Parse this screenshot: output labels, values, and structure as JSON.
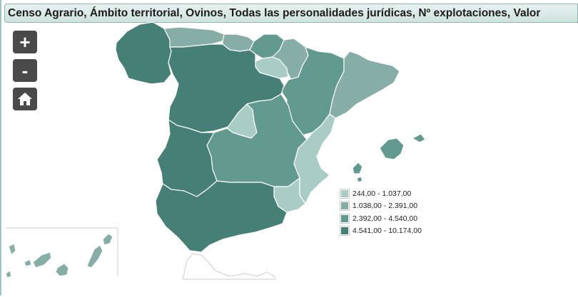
{
  "title": "Censo Agrario, Ámbito territorial, Ovinos, Todas las personalidades jurídicas, Nº explotaciones, Valor",
  "controls": {
    "zoom_in": "+",
    "zoom_out": "-",
    "home_icon": "home-icon"
  },
  "legend": [
    {
      "label": "244,00 - 1.037,00",
      "color": "#a9ccc5"
    },
    {
      "label": "1.038,00 - 2.391,00",
      "color": "#86ada6"
    },
    {
      "label": "2.392,00 - 4.540,00",
      "color": "#639a8f"
    },
    {
      "label": "4.541,00 - 10.174,00",
      "color": "#467f75"
    }
  ],
  "regions": [
    {
      "name": "Galicia",
      "class": 4
    },
    {
      "name": "Asturias",
      "class": 2
    },
    {
      "name": "Cantabria",
      "class": 2
    },
    {
      "name": "País Vasco",
      "class": 3
    },
    {
      "name": "Navarra",
      "class": 2
    },
    {
      "name": "La Rioja",
      "class": 1
    },
    {
      "name": "Aragón",
      "class": 3
    },
    {
      "name": "Cataluña",
      "class": 2
    },
    {
      "name": "Castilla y León",
      "class": 4
    },
    {
      "name": "Madrid",
      "class": 1
    },
    {
      "name": "Castilla-La Mancha",
      "class": 3
    },
    {
      "name": "Extremadura",
      "class": 4
    },
    {
      "name": "Comunitat Valenciana",
      "class": 1
    },
    {
      "name": "Región de Murcia",
      "class": 1
    },
    {
      "name": "Andalucía",
      "class": 4
    },
    {
      "name": "Illes Balears",
      "class": 3
    },
    {
      "name": "Canarias",
      "class": 2
    }
  ]
}
